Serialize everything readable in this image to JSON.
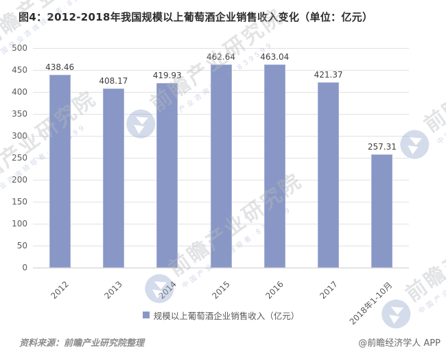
{
  "title": "图4：2012-2018年我国规模以上葡萄酒企业销售收入变化（单位：亿元）",
  "chart_data": {
    "type": "bar",
    "categories": [
      "2012",
      "2013",
      "2014",
      "2015",
      "2016",
      "2017",
      "2018年1-10月"
    ],
    "values": [
      438.46,
      408.17,
      419.93,
      462.64,
      463.04,
      421.37,
      257.31
    ],
    "value_labels": [
      "438.46",
      "408.17",
      "419.93",
      "462.64",
      "463.04",
      "421.37",
      "257.31"
    ],
    "series_name": "规模以上葡萄酒企业销售收入（亿元）",
    "title": "图4：2012-2018年我国规模以上葡萄酒企业销售收入变化（单位：亿元）",
    "xlabel": "",
    "ylabel": "",
    "ylim": [
      0,
      500
    ],
    "ytick_step": 50,
    "yticks": [
      0,
      50,
      100,
      150,
      200,
      250,
      300,
      350,
      400,
      450,
      500
    ],
    "grid": true,
    "legend_position": "bottom",
    "bar_color": "#8897C5"
  },
  "legend": {
    "label": "规模以上葡萄酒企业销售收入（亿元）"
  },
  "footer": {
    "source": "资料来源：前瞻产业研究院整理",
    "credit": "@前瞻经济学人 APP"
  },
  "watermark": {
    "brand": "前瞻产业研究院",
    "tagline": "中国产业咨询领导者",
    "code": "839599"
  },
  "colors": {
    "bar": "#8897C5",
    "bar_border": "#A5B1D7",
    "grid": "#e1e1e1",
    "axis": "#cccccc",
    "title_text": "#2b2b2b",
    "tick_text": "#595959",
    "value_text": "#3d3d3d",
    "source_text": "#8c8c8c",
    "credit_text": "#666666"
  }
}
